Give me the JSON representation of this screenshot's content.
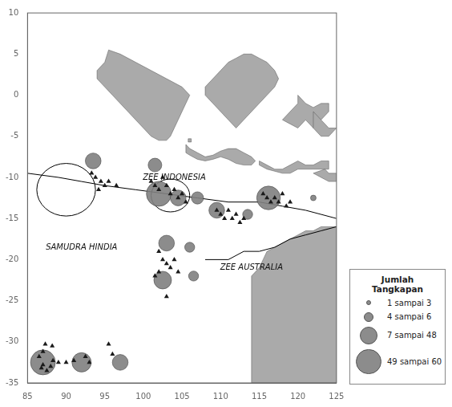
{
  "chart_data": {
    "type": "bubble",
    "xlim": [
      85,
      125
    ],
    "ylim": [
      -35,
      10
    ],
    "xticks": [
      85,
      90,
      95,
      100,
      105,
      110,
      115,
      120,
      125
    ],
    "yticks": [
      10,
      5,
      0,
      -5,
      -10,
      -15,
      -20,
      -25,
      -30,
      -35
    ],
    "grid": false,
    "legend": "lower right",
    "legend_title": "Jumlah Tangkapan",
    "legend_entries": [
      {
        "label": "1 sampai 3",
        "size": 20
      },
      {
        "label": "4 sampai 6",
        "size": 80
      },
      {
        "label": "7 sampai 48",
        "size": 250
      },
      {
        "label": "49 sampai 60",
        "size": 500
      }
    ],
    "annotations": [
      {
        "text": "ZEE INDONESIA",
        "x": 104,
        "y": -10.0
      },
      {
        "text": "ZEE AUSTRALIA",
        "x": 114,
        "y": -21.0
      },
      {
        "text": "SAMUDRA HINDIA",
        "x": 92,
        "y": -18.5
      }
    ],
    "series": [
      {
        "type": "polygon",
        "color": "#aaaaaa",
        "points": [
          [
            114,
            -22
          ],
          [
            115,
            -21
          ],
          [
            115.5,
            -20
          ],
          [
            116,
            -19
          ],
          [
            117,
            -18.5
          ],
          [
            118,
            -18
          ],
          [
            119,
            -17.5
          ],
          [
            120,
            -17
          ],
          [
            121,
            -16.5
          ],
          [
            122,
            -16.5
          ],
          [
            123,
            -16
          ],
          [
            124,
            -16
          ],
          [
            125,
            -16
          ],
          [
            125,
            -35
          ],
          [
            125,
            -35
          ],
          [
            114,
            -35
          ]
        ]
      },
      {
        "type": "polygon",
        "color": "#aaaaaa",
        "points": [
          [
            95.5,
            5.5
          ],
          [
            97,
            5
          ],
          [
            99,
            4
          ],
          [
            101,
            3
          ],
          [
            103,
            2
          ],
          [
            105,
            1
          ],
          [
            106,
            0
          ],
          [
            105.5,
            -1
          ],
          [
            105,
            -2
          ],
          [
            104.5,
            -3
          ],
          [
            104,
            -4
          ],
          [
            103.5,
            -5
          ],
          [
            103,
            -5.5
          ],
          [
            102,
            -5.5
          ],
          [
            101,
            -5
          ],
          [
            100,
            -4
          ],
          [
            99,
            -3
          ],
          [
            98,
            -2
          ],
          [
            97,
            -1
          ],
          [
            96,
            0
          ],
          [
            95,
            1
          ],
          [
            94,
            2
          ],
          [
            94,
            3
          ],
          [
            95,
            4
          ],
          [
            95.5,
            5.5
          ]
        ]
      },
      {
        "type": "polygon",
        "color": "#aaaaaa",
        "points": [
          [
            105.5,
            -6
          ],
          [
            106,
            -6.5
          ],
          [
            107,
            -7
          ],
          [
            108,
            -7.5
          ],
          [
            109,
            -7.3
          ],
          [
            110,
            -6.8
          ],
          [
            111,
            -6.5
          ],
          [
            112,
            -6.5
          ],
          [
            113,
            -7
          ],
          [
            114,
            -7.5
          ],
          [
            114.5,
            -8
          ],
          [
            114,
            -8.5
          ],
          [
            113,
            -8.5
          ],
          [
            112,
            -8.3
          ],
          [
            111,
            -7.8
          ],
          [
            110,
            -7.5
          ],
          [
            109,
            -7.8
          ],
          [
            108,
            -8
          ],
          [
            107,
            -7.8
          ],
          [
            106,
            -7.3
          ],
          [
            105.5,
            -7
          ],
          [
            105.5,
            -6
          ]
        ]
      },
      {
        "type": "polygon",
        "color": "#aaaaaa",
        "points": [
          [
            108,
            1
          ],
          [
            109,
            2
          ],
          [
            110,
            3
          ],
          [
            111,
            4
          ],
          [
            112,
            4.5
          ],
          [
            113,
            5
          ],
          [
            114,
            5
          ],
          [
            115,
            4.5
          ],
          [
            116,
            4
          ],
          [
            117,
            3
          ],
          [
            117.5,
            2
          ],
          [
            117,
            1
          ],
          [
            116,
            0
          ],
          [
            115,
            -1
          ],
          [
            114,
            -2
          ],
          [
            113,
            -3
          ],
          [
            112,
            -4
          ],
          [
            111,
            -3
          ],
          [
            110,
            -2
          ],
          [
            109,
            -1
          ],
          [
            108,
            0
          ],
          [
            108,
            1
          ]
        ]
      },
      {
        "type": "polygon",
        "color": "#aaaaaa",
        "points": [
          [
            120,
            0
          ],
          [
            121,
            -1
          ],
          [
            122,
            -1.5
          ],
          [
            123,
            -1
          ],
          [
            124,
            -1
          ],
          [
            124,
            -2
          ],
          [
            123,
            -3
          ],
          [
            122,
            -4
          ],
          [
            121,
            -3
          ],
          [
            120,
            -4
          ],
          [
            119,
            -3.5
          ],
          [
            118,
            -3
          ],
          [
            119,
            -2
          ],
          [
            120,
            -1
          ],
          [
            120,
            0
          ]
        ]
      },
      {
        "type": "polygon",
        "color": "#aaaaaa",
        "points": [
          [
            122,
            -2
          ],
          [
            123,
            -3
          ],
          [
            124,
            -4
          ],
          [
            125,
            -4
          ],
          [
            124,
            -5
          ],
          [
            123,
            -5
          ],
          [
            122,
            -4
          ],
          [
            122,
            -2
          ]
        ]
      },
      {
        "type": "polygon",
        "color": "#aaaaaa",
        "points": [
          [
            115,
            -8
          ],
          [
            116,
            -8.5
          ],
          [
            117,
            -9
          ],
          [
            118,
            -9
          ],
          [
            119,
            -8.5
          ],
          [
            120,
            -8
          ],
          [
            121,
            -8.5
          ],
          [
            122,
            -8.5
          ],
          [
            123,
            -8
          ],
          [
            124,
            -8
          ],
          [
            124,
            -9
          ],
          [
            122,
            -9
          ],
          [
            120,
            -9
          ],
          [
            119,
            -9.5
          ],
          [
            118,
            -9.5
          ],
          [
            116,
            -9
          ],
          [
            115,
            -8.5
          ],
          [
            115,
            -8
          ]
        ]
      },
      {
        "type": "polygon",
        "color": "#aaaaaa",
        "points": [
          [
            123.5,
            -9
          ],
          [
            124,
            -9.5
          ],
          [
            125,
            -9.5
          ],
          [
            125,
            -10.5
          ],
          [
            124,
            -10.5
          ],
          [
            123,
            -10
          ],
          [
            122,
            -9.5
          ],
          [
            123.5,
            -9
          ]
        ]
      },
      {
        "type": "polygon",
        "color": "#aaaaaa",
        "points": [
          [
            105.8,
            -5.3
          ],
          [
            106.2,
            -5.3
          ],
          [
            106.2,
            -5.7
          ],
          [
            105.8,
            -5.7
          ]
        ]
      },
      {
        "type": "line",
        "color": "#000000",
        "x": [
          85,
          89,
          92,
          95,
          99,
          103,
          107,
          111,
          115,
          118,
          121,
          125
        ],
        "y": [
          -9.5,
          -10,
          -10.5,
          -11,
          -11.5,
          -12,
          -12.5,
          -13,
          -13,
          -13.5,
          -14,
          -15
        ]
      },
      {
        "type": "line",
        "color": "#000000",
        "x": [
          108,
          111,
          113,
          115,
          117,
          119,
          121,
          123,
          125
        ],
        "y": [
          -20,
          -20,
          -19,
          -19,
          -18.5,
          -17.5,
          -17,
          -16.5,
          -16
        ]
      },
      {
        "type": "ellipse",
        "color": "#000000",
        "cx": 90.0,
        "cy": -11.5,
        "rx": 3.8,
        "ry": 3.2
      },
      {
        "type": "ellipse",
        "color": "#000000",
        "cx": 103.5,
        "cy": -12.2,
        "rx": 2.5,
        "ry": 2.0
      },
      {
        "type": "bubble",
        "color": "#808080",
        "x": [
          87.0,
          92.0,
          97.0,
          93.5,
          101.5,
          102.0,
          104.5,
          107.0,
          103.0,
          106.0,
          102.5,
          106.5,
          116.2,
          122.0,
          109.5,
          113.5
        ],
        "y": [
          -32.5,
          -32.5,
          -32.5,
          -8.0,
          -8.5,
          -12.0,
          -12.5,
          -12.5,
          -18.0,
          -18.5,
          -22.5,
          -22.0,
          -12.5,
          -12.5,
          -14.0,
          -14.5
        ],
        "sizes": [
          500,
          300,
          200,
          200,
          150,
          500,
          200,
          120,
          200,
          80,
          250,
          80,
          450,
          25,
          200,
          80
        ]
      },
      {
        "type": "scatter",
        "marker": "triangle",
        "color": "#1a1a1a",
        "points": [
          [
            87.3,
            -30.3
          ],
          [
            87.0,
            -31.2
          ],
          [
            86.5,
            -31.8
          ],
          [
            87.0,
            -32.8
          ],
          [
            86.8,
            -33.2
          ],
          [
            87.5,
            -33.5
          ],
          [
            88.0,
            -33.0
          ],
          [
            88.3,
            -32.3
          ],
          [
            88.2,
            -30.5
          ],
          [
            89.0,
            -32.5
          ],
          [
            90.0,
            -32.5
          ],
          [
            91.0,
            -32.3
          ],
          [
            92.5,
            -31.8
          ],
          [
            93.0,
            -32.5
          ],
          [
            95.5,
            -30.3
          ],
          [
            96.0,
            -31.5
          ],
          [
            93.3,
            -9.5
          ],
          [
            93.8,
            -10.0
          ],
          [
            94.5,
            -10.5
          ],
          [
            95.0,
            -11.0
          ],
          [
            94.2,
            -11.5
          ],
          [
            95.5,
            -10.5
          ],
          [
            96.5,
            -11.0
          ],
          [
            101.0,
            -10.5
          ],
          [
            101.5,
            -11.0
          ],
          [
            102.0,
            -11.5
          ],
          [
            102.5,
            -10.0
          ],
          [
            103.0,
            -11.0
          ],
          [
            103.5,
            -12.0
          ],
          [
            104.0,
            -11.5
          ],
          [
            104.5,
            -12.5
          ],
          [
            105.0,
            -12.0
          ],
          [
            105.5,
            -13.0
          ],
          [
            102.0,
            -19.0
          ],
          [
            102.5,
            -20.0
          ],
          [
            103.0,
            -20.5
          ],
          [
            103.5,
            -21.0
          ],
          [
            104.0,
            -20.0
          ],
          [
            104.5,
            -21.5
          ],
          [
            102.0,
            -21.5
          ],
          [
            101.5,
            -22.0
          ],
          [
            103.0,
            -24.5
          ],
          [
            109.5,
            -14.0
          ],
          [
            110.0,
            -14.5
          ],
          [
            110.5,
            -15.0
          ],
          [
            111.0,
            -14.0
          ],
          [
            111.5,
            -15.0
          ],
          [
            112.0,
            -14.5
          ],
          [
            112.5,
            -15.5
          ],
          [
            113.0,
            -15.0
          ],
          [
            115.5,
            -12.0
          ],
          [
            116.0,
            -12.5
          ],
          [
            116.5,
            -13.0
          ],
          [
            117.0,
            -12.5
          ],
          [
            117.5,
            -13.0
          ],
          [
            118.0,
            -12.0
          ],
          [
            118.5,
            -13.5
          ],
          [
            119.0,
            -13.0
          ]
        ]
      }
    ]
  }
}
